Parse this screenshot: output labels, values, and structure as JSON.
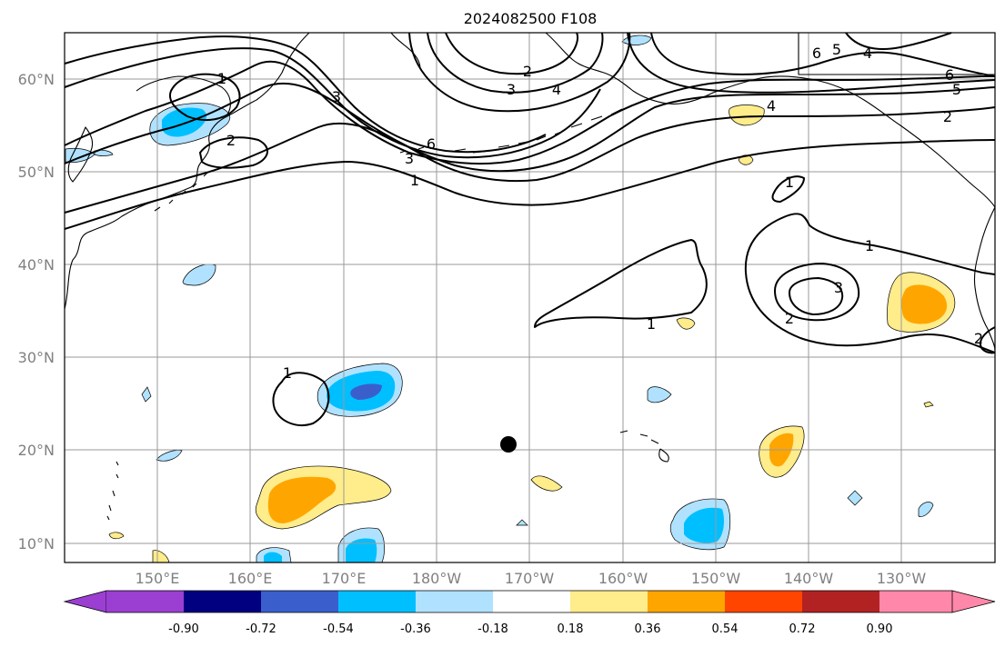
{
  "title": "2024082500 F108",
  "map": {
    "lat_labels": [
      "60°N",
      "50°N",
      "40°N",
      "30°N",
      "20°N",
      "10°N"
    ],
    "lon_labels": [
      "150°E",
      "160°E",
      "170°E",
      "180°W",
      "170°W",
      "160°W",
      "150°W",
      "140°W",
      "130°W"
    ],
    "contour_labels": [
      "1",
      "2",
      "3",
      "4",
      "5",
      "6"
    ],
    "marker": {
      "lon": -172.5,
      "lat": 20.7
    }
  },
  "colorbar": {
    "levels": [
      "-0.90",
      "-0.72",
      "-0.54",
      "-0.36",
      "-0.18",
      "0.18",
      "0.36",
      "0.54",
      "0.72",
      "0.90"
    ],
    "colors": [
      "#9a3fd1",
      "#000080",
      "#3a5fcd",
      "#00bfff",
      "#b0e2ff",
      "#ffffff",
      "#ffec8b",
      "#ffa500",
      "#ff4500",
      "#b22222",
      "#ff88aa"
    ]
  },
  "colors": {
    "contour": "#000000",
    "grid": "#9a9a9a",
    "label": "#808080"
  }
}
